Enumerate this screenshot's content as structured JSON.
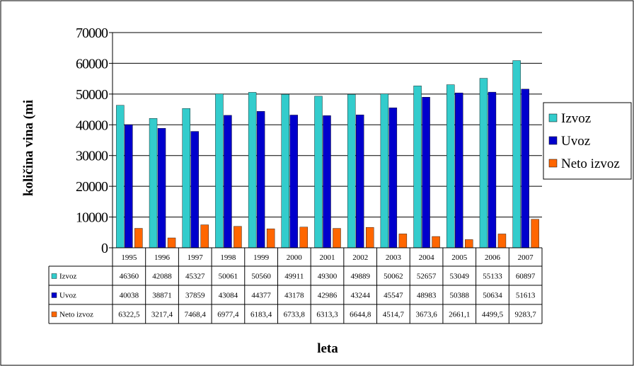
{
  "chart_data": {
    "type": "bar",
    "title": "",
    "xlabel": "leta",
    "ylabel": "količina vina (mi",
    "ylim": [
      0,
      70000
    ],
    "yticks": [
      "0",
      "10000",
      "20000",
      "30000",
      "40000",
      "50000",
      "60000",
      "70000"
    ],
    "grid": true,
    "legend": "right",
    "data_table": true,
    "categories": [
      "1995",
      "1996",
      "1997",
      "1998",
      "1999",
      "2000",
      "2001",
      "2002",
      "2003",
      "2004",
      "2005",
      "2006",
      "2007"
    ],
    "series": [
      {
        "name": "Izvoz",
        "color": "#33CCCC",
        "values": [
          46360,
          42088,
          45327,
          50061,
          50560,
          49911,
          49300,
          49889,
          50062,
          52657,
          53049,
          55133,
          60897
        ],
        "labels": [
          "46360",
          "42088",
          "45327",
          "50061",
          "50560",
          "49911",
          "49300",
          "49889",
          "50062",
          "52657",
          "53049",
          "55133",
          "60897"
        ]
      },
      {
        "name": "Uvoz",
        "color": "#0000CC",
        "values": [
          40038,
          38871,
          37859,
          43084,
          44377,
          43178,
          42986,
          43244,
          45547,
          48983,
          50388,
          50634,
          51613
        ],
        "labels": [
          "40038",
          "38871",
          "37859",
          "43084",
          "44377",
          "43178",
          "42986",
          "43244",
          "45547",
          "48983",
          "50388",
          "50634",
          "51613"
        ]
      },
      {
        "name": "Neto izvoz",
        "color": "#FF6600",
        "values": [
          6322.5,
          3217.4,
          7468.4,
          6977.4,
          6183.4,
          6733.8,
          6313.3,
          6644.8,
          4514.7,
          3673.6,
          2661.1,
          4499.5,
          9283.7
        ],
        "labels": [
          "6322,5",
          "3217,4",
          "7468,4",
          "6977,4",
          "6183,4",
          "6733,8",
          "6313,3",
          "6644,8",
          "4514,7",
          "3673,6",
          "2661,1",
          "4499,5",
          "9283,7"
        ]
      }
    ]
  }
}
